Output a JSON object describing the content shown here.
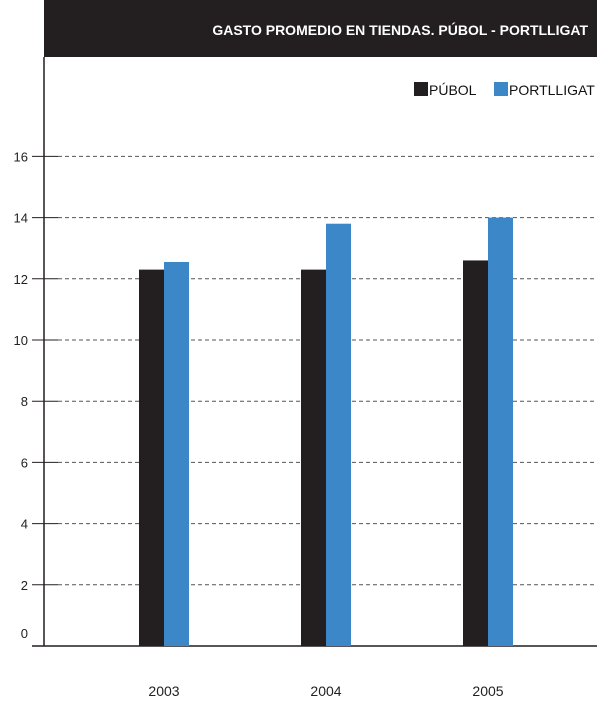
{
  "chart_data": {
    "type": "bar",
    "title": "GASTO PROMEDIO EN TIENDAS. PÚBOL - PORTLLIGAT",
    "categories": [
      "2003",
      "2004",
      "2005"
    ],
    "series": [
      {
        "name": "PÚBOL",
        "values": [
          12.3,
          12.3,
          12.6
        ],
        "color": "#231f20"
      },
      {
        "name": "PORTLLIGAT",
        "values": [
          12.55,
          13.8,
          14.0
        ],
        "color": "#3c87c8"
      }
    ],
    "y_ticks": [
      "0",
      "2",
      "4",
      "6",
      "8",
      "10",
      "12",
      "14",
      "16"
    ],
    "ylim": [
      0,
      17
    ],
    "grid": true,
    "legend_position": "top-right"
  }
}
